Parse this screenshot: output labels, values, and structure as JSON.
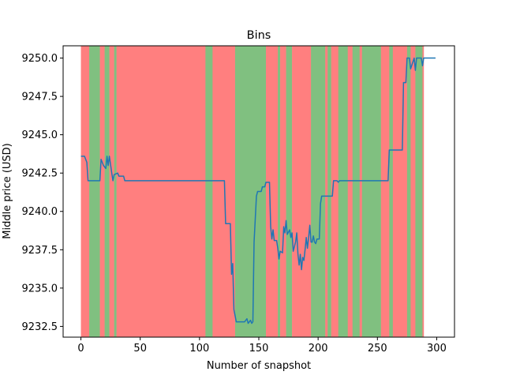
{
  "chart_data": {
    "type": "line",
    "title": "Bins",
    "xlabel": "Number of snapshot",
    "ylabel": "Middle price (USD)",
    "xlim": [
      -15,
      315
    ],
    "ylim": [
      9231.8,
      9250.8
    ],
    "xticks": [
      0,
      50,
      100,
      150,
      200,
      250,
      300
    ],
    "yticks": [
      9232.5,
      9235.0,
      9237.5,
      9240.0,
      9242.5,
      9245.0,
      9247.5,
      9250.0
    ],
    "ytick_labels": [
      "9232.5",
      "9235.0",
      "9237.5",
      "9240.0",
      "9242.5",
      "9245.0",
      "9247.5",
      "9250.0"
    ],
    "grid": false,
    "line_color": "#1f77b4",
    "band_colors": {
      "red": "#ff7f7f",
      "green": "#80c080"
    },
    "bands": [
      {
        "x0": 0,
        "x1": 7,
        "color": "red"
      },
      {
        "x0": 7,
        "x1": 16,
        "color": "green"
      },
      {
        "x0": 16,
        "x1": 20,
        "color": "red"
      },
      {
        "x0": 20,
        "x1": 24,
        "color": "green"
      },
      {
        "x0": 24,
        "x1": 28,
        "color": "red"
      },
      {
        "x0": 28,
        "x1": 30,
        "color": "green"
      },
      {
        "x0": 30,
        "x1": 105,
        "color": "red"
      },
      {
        "x0": 105,
        "x1": 111,
        "color": "green"
      },
      {
        "x0": 111,
        "x1": 130,
        "color": "red"
      },
      {
        "x0": 130,
        "x1": 156,
        "color": "green"
      },
      {
        "x0": 156,
        "x1": 166,
        "color": "red"
      },
      {
        "x0": 166,
        "x1": 168,
        "color": "green"
      },
      {
        "x0": 168,
        "x1": 173,
        "color": "red"
      },
      {
        "x0": 173,
        "x1": 178,
        "color": "green"
      },
      {
        "x0": 178,
        "x1": 194,
        "color": "red"
      },
      {
        "x0": 194,
        "x1": 206,
        "color": "green"
      },
      {
        "x0": 206,
        "x1": 208,
        "color": "red"
      },
      {
        "x0": 208,
        "x1": 211,
        "color": "green"
      },
      {
        "x0": 211,
        "x1": 217,
        "color": "red"
      },
      {
        "x0": 217,
        "x1": 225,
        "color": "green"
      },
      {
        "x0": 225,
        "x1": 229,
        "color": "red"
      },
      {
        "x0": 229,
        "x1": 235,
        "color": "green"
      },
      {
        "x0": 235,
        "x1": 237,
        "color": "red"
      },
      {
        "x0": 237,
        "x1": 253,
        "color": "green"
      },
      {
        "x0": 253,
        "x1": 260,
        "color": "red"
      },
      {
        "x0": 260,
        "x1": 263,
        "color": "green"
      },
      {
        "x0": 263,
        "x1": 275,
        "color": "red"
      },
      {
        "x0": 275,
        "x1": 278,
        "color": "green"
      },
      {
        "x0": 278,
        "x1": 282,
        "color": "red"
      },
      {
        "x0": 282,
        "x1": 288,
        "color": "green"
      },
      {
        "x0": 288,
        "x1": 289,
        "color": "red"
      }
    ],
    "series": [
      {
        "points": [
          [
            0,
            9243.6
          ],
          [
            3,
            9243.6
          ],
          [
            5,
            9243.2
          ],
          [
            6,
            9242.0
          ],
          [
            16,
            9242.0
          ],
          [
            17,
            9243.4
          ],
          [
            19,
            9243.0
          ],
          [
            21,
            9242.8
          ],
          [
            22,
            9243.6
          ],
          [
            23,
            9243.0
          ],
          [
            24,
            9243.6
          ],
          [
            26,
            9242.5
          ],
          [
            27,
            9242.0
          ],
          [
            28,
            9242.4
          ],
          [
            31,
            9242.5
          ],
          [
            32,
            9242.3
          ],
          [
            36,
            9242.3
          ],
          [
            37,
            9242.0
          ],
          [
            119,
            9242.0
          ],
          [
            121,
            9242.0
          ],
          [
            122,
            9239.2
          ],
          [
            126,
            9239.2
          ],
          [
            127,
            9235.9
          ],
          [
            128,
            9236.6
          ],
          [
            129,
            9233.6
          ],
          [
            131,
            9232.8
          ],
          [
            138,
            9232.8
          ],
          [
            140,
            9233.0
          ],
          [
            141,
            9232.7
          ],
          [
            143,
            9232.9
          ],
          [
            144,
            9232.7
          ],
          [
            145,
            9232.8
          ],
          [
            146,
            9238.0
          ],
          [
            147,
            9239.5
          ],
          [
            148,
            9241.0
          ],
          [
            149,
            9241.3
          ],
          [
            152,
            9241.3
          ],
          [
            153,
            9241.6
          ],
          [
            155,
            9241.6
          ],
          [
            156,
            9241.9
          ],
          [
            159,
            9241.9
          ],
          [
            160,
            9239.0
          ],
          [
            161,
            9238.2
          ],
          [
            162,
            9238.8
          ],
          [
            163,
            9238.1
          ],
          [
            165,
            9238.1
          ],
          [
            166,
            9237.6
          ],
          [
            167,
            9236.9
          ],
          [
            168,
            9237.4
          ],
          [
            170,
            9237.3
          ],
          [
            171,
            9239.0
          ],
          [
            172,
            9238.6
          ],
          [
            173,
            9239.4
          ],
          [
            174,
            9238.5
          ],
          [
            176,
            9238.8
          ],
          [
            177,
            9238.3
          ],
          [
            178,
            9238.6
          ],
          [
            179,
            9237.4
          ],
          [
            181,
            9238.0
          ],
          [
            182,
            9238.6
          ],
          [
            183,
            9237.2
          ],
          [
            184,
            9236.5
          ],
          [
            185,
            9237.2
          ],
          [
            186,
            9236.2
          ],
          [
            187,
            9237.0
          ],
          [
            188,
            9236.8
          ],
          [
            189,
            9237.5
          ],
          [
            190,
            9238.3
          ],
          [
            191,
            9237.6
          ],
          [
            192,
            9238.3
          ],
          [
            193,
            9239.1
          ],
          [
            194,
            9238.0
          ],
          [
            195,
            9238.0
          ],
          [
            196,
            9238.4
          ],
          [
            197,
            9238.0
          ],
          [
            198,
            9237.9
          ],
          [
            199,
            9238.2
          ],
          [
            201,
            9238.2
          ],
          [
            202,
            9240.5
          ],
          [
            203,
            9241.0
          ],
          [
            212,
            9241.0
          ],
          [
            213,
            9242.0
          ],
          [
            216,
            9242.0
          ],
          [
            217,
            9241.9
          ],
          [
            218,
            9242.0
          ],
          [
            259,
            9242.0
          ],
          [
            260,
            9244.0
          ],
          [
            271,
            9244.0
          ],
          [
            272,
            9248.4
          ],
          [
            274,
            9248.4
          ],
          [
            275,
            9250.0
          ],
          [
            277,
            9250.0
          ],
          [
            278,
            9249.3
          ],
          [
            281,
            9250.0
          ],
          [
            282,
            9249.2
          ],
          [
            283,
            9250.0
          ],
          [
            287,
            9250.0
          ],
          [
            288,
            9249.5
          ],
          [
            289,
            9250.0
          ],
          [
            299,
            9250.0
          ]
        ]
      }
    ]
  }
}
